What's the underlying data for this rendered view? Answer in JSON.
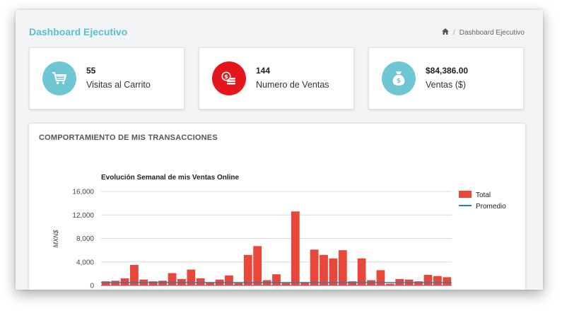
{
  "header": {
    "title": "Dashboard Ejecutivo",
    "breadcrumb": {
      "separator": "/",
      "current": "Dashboard Ejecutivo"
    }
  },
  "cards": [
    {
      "value": "55",
      "label": "Visitas al Carrito",
      "icon": "cart-icon",
      "color": "#6ec6d2"
    },
    {
      "value": "144",
      "label": "Numero de Ventas",
      "icon": "coins-icon",
      "color": "#e4161c"
    },
    {
      "value": "$84,386.00",
      "label": "Ventas ($)",
      "icon": "money-bag-icon",
      "color": "#6ec6d2"
    }
  ],
  "panel": {
    "title": "COMPORTAMIENTO DE MIS TRANSACCIONES"
  },
  "chart_data": {
    "type": "bar",
    "title": "Evolución Semanal de mis Ventas Online",
    "ylabel": "MXN$",
    "ylim": [
      0,
      16000
    ],
    "yticks": [
      "0",
      "4,000",
      "8,000",
      "12,000",
      "16,000"
    ],
    "series": [
      {
        "name": "Total",
        "color": "#e8473a",
        "values": [
          700,
          800,
          1200,
          3500,
          1000,
          700,
          800,
          2100,
          1100,
          2700,
          1200,
          500,
          1000,
          1700,
          400,
          5200,
          6700,
          900,
          1900,
          400,
          12600,
          500,
          6100,
          5200,
          4600,
          6000,
          700,
          4600,
          900,
          2600,
          300,
          1100,
          1000,
          700,
          1800,
          1600,
          1400
        ]
      },
      {
        "name": "Promedio",
        "color": "#2c7bbd",
        "type": "line",
        "value": 500
      }
    ],
    "legend": "right",
    "grid": true
  }
}
